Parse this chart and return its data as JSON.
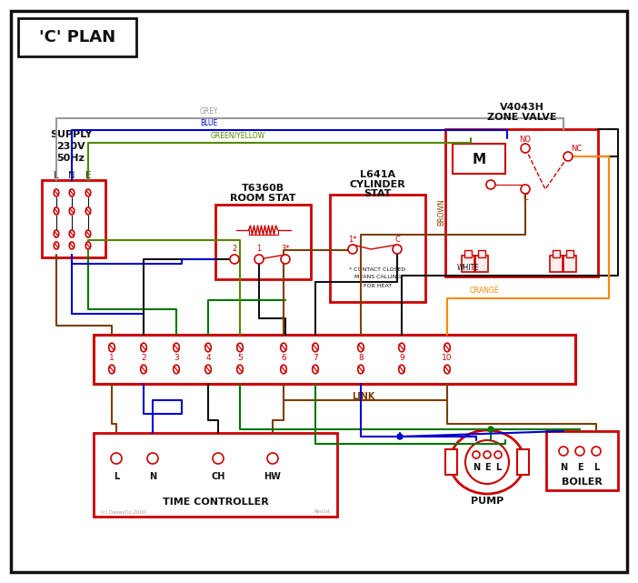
{
  "title": "'C' PLAN",
  "bg": "#ffffff",
  "RED": "#cc0000",
  "BLUE": "#0000cc",
  "GREEN": "#007700",
  "BROWN": "#7B3F00",
  "GREY": "#999999",
  "BLACK": "#111111",
  "ORANGE": "#FF8800",
  "GY": "#558800",
  "supply_lines": [
    "SUPPLY",
    "230V",
    "50Hz"
  ],
  "lne": [
    "L",
    "N",
    "E"
  ],
  "term_nums": [
    "1",
    "2",
    "3",
    "4",
    "5",
    "6",
    "7",
    "8",
    "9",
    "10"
  ],
  "tc_terms": [
    [
      "L",
      128
    ],
    [
      "N",
      168
    ],
    [
      "CH",
      240
    ],
    [
      "HW",
      300
    ]
  ],
  "boiler_terms": [
    [
      "N",
      620
    ],
    [
      "E",
      638
    ],
    [
      "L",
      656
    ]
  ],
  "pump_terms": [
    [
      "N",
      524
    ],
    [
      "E",
      540
    ],
    [
      "L",
      556
    ]
  ],
  "rs_terms": [
    [
      "2",
      258
    ],
    [
      "1",
      285
    ],
    [
      "3*",
      314
    ]
  ],
  "cs_terms": [
    [
      "1*",
      388
    ],
    [
      "C",
      437
    ]
  ],
  "copyright": "(c) DaveyCo 2000",
  "rev": "Rev1d",
  "wire_labels": {
    "grey": "GREY",
    "blue": "BLUE",
    "gy": "GREEN/YELLOW",
    "brown": "BROWN",
    "white": "WHITE",
    "orange": "ORANGE",
    "link": "LINK"
  }
}
